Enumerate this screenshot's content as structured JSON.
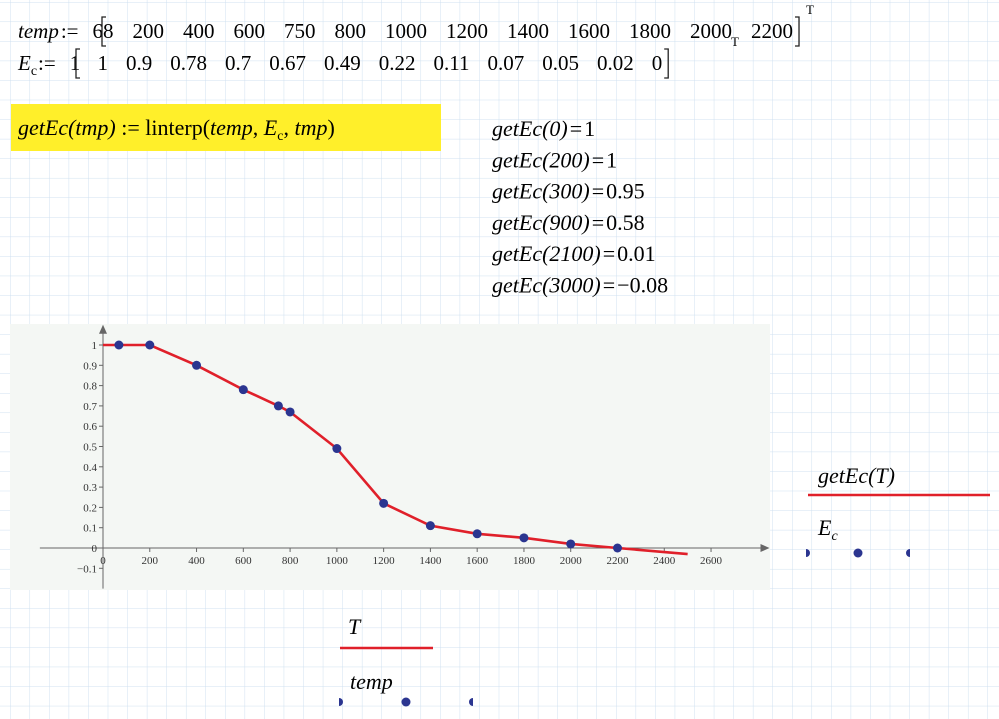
{
  "temp_def": {
    "name": "temp",
    "op": ":=",
    "values": [
      68,
      200,
      400,
      600,
      750,
      800,
      1000,
      1200,
      1400,
      1600,
      1800,
      2000,
      2200
    ],
    "sup": "T",
    "stray": "T"
  },
  "ec_def": {
    "name": "E",
    "sub": "c",
    "op": ":=",
    "values": [
      1,
      1,
      0.9,
      0.78,
      0.7,
      0.67,
      0.49,
      0.22,
      0.11,
      0.07,
      0.05,
      0.02,
      0
    ]
  },
  "function_def": {
    "parts": [
      {
        "text": "getEc(tmp)",
        "style": "italic"
      },
      {
        "text": " := ",
        "style": "normal"
      },
      {
        "text": "linterp(",
        "style": "normal"
      },
      {
        "text": "temp",
        "style": "italic"
      },
      {
        "text": ", ",
        "style": "normal"
      },
      {
        "text": "E",
        "style": "italic"
      },
      {
        "text": "c",
        "style": "sub"
      },
      {
        "text": ", ",
        "style": "normal"
      },
      {
        "text": "tmp",
        "style": "italic"
      },
      {
        "text": ")",
        "style": "normal"
      }
    ]
  },
  "results": [
    {
      "call": "getEc(0)",
      "eq": "=",
      "value": 1
    },
    {
      "call": "getEc(200)",
      "eq": "=",
      "value": 1
    },
    {
      "call": "getEc(300)",
      "eq": "=",
      "value": 0.95
    },
    {
      "call": "getEc(900)",
      "eq": "=",
      "value": 0.58
    },
    {
      "call": "getEc(2100)",
      "eq": "=",
      "value": 0.01
    },
    {
      "call": "getEc(3000)",
      "eq": "=",
      "value": -0.08,
      "value_label": "−0.08"
    }
  ],
  "chart_data": {
    "type": "line",
    "xlim": [
      -270,
      2850
    ],
    "ylim": [
      -0.2,
      1.1
    ],
    "xticks": [
      0,
      200,
      400,
      600,
      800,
      1000,
      1200,
      1400,
      1600,
      1800,
      2000,
      2200,
      2400,
      2600
    ],
    "yticks": [
      {
        "value": -0.1,
        "label": "−0.1"
      },
      0,
      0.1,
      0.2,
      0.3,
      0.4,
      0.5,
      0.6,
      0.7,
      0.8,
      0.9,
      1
    ],
    "series": [
      {
        "name": "getEc(T)",
        "x_label": "T",
        "color": "#e0202a",
        "marker": "none",
        "x": [
          0,
          68,
          200,
          400,
          600,
          750,
          800,
          1000,
          1200,
          1400,
          1600,
          1800,
          2000,
          2200,
          2500
        ],
        "values": [
          1,
          1,
          1,
          0.9,
          0.78,
          0.7,
          0.67,
          0.49,
          0.22,
          0.11,
          0.07,
          0.05,
          0.02,
          0,
          -0.03
        ]
      },
      {
        "name": "E",
        "name_sub": "c",
        "x_label": "temp",
        "color": "#2b3590",
        "marker": "circle",
        "x": [
          68,
          200,
          400,
          600,
          750,
          800,
          1000,
          1200,
          1400,
          1600,
          1800,
          2000,
          2200
        ],
        "values": [
          1,
          1,
          0.9,
          0.78,
          0.7,
          0.67,
          0.49,
          0.22,
          0.11,
          0.07,
          0.05,
          0.02,
          0
        ]
      }
    ]
  }
}
